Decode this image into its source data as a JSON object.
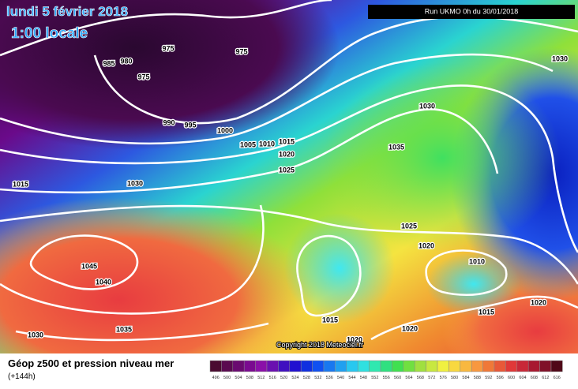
{
  "header": {
    "title": "lundi 5 février 2018",
    "subtitle": "1:00 locale",
    "run": "Run UKMO 0h du 30/01/2018"
  },
  "isobars": [
    "975",
    "975",
    "985",
    "980",
    "975",
    "990",
    "995",
    "1000",
    "1005",
    "1010",
    "1015",
    "1020",
    "1025",
    "1015",
    "1030",
    "1030",
    "1035",
    "1030",
    "1025",
    "1020",
    "1010",
    "1045",
    "1040",
    "1035",
    "1030",
    "1015",
    "1020",
    "1020",
    "1015",
    "1020"
  ],
  "copyright": "Copyright 2018 Meteociel.fr",
  "footer": {
    "title": "Géop z500 et pression niveau mer",
    "lead": "(+144h)"
  },
  "scale": [
    "496",
    "500",
    "504",
    "508",
    "512",
    "516",
    "520",
    "524",
    "528",
    "532",
    "536",
    "540",
    "544",
    "548",
    "552",
    "556",
    "560",
    "564",
    "568",
    "572",
    "576",
    "580",
    "584",
    "588",
    "592",
    "596",
    "600",
    "604",
    "608",
    "612",
    "616"
  ]
}
